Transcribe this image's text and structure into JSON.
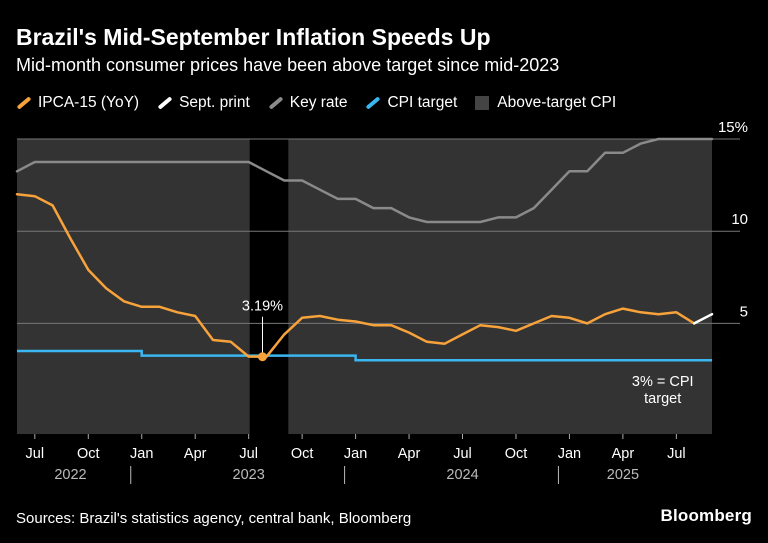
{
  "title": "Brazil's Mid-September Inflation Speeds Up",
  "subtitle": "Mid-month consumer prices have been above target since mid-2023",
  "legend": [
    {
      "label": "IPCA-15 (YoY)",
      "color": "#f7a23b",
      "kind": "line"
    },
    {
      "label": "Sept. print",
      "color": "#ffffff",
      "kind": "line"
    },
    {
      "label": "Key rate",
      "color": "#8a8a8a",
      "kind": "line"
    },
    {
      "label": "CPI target",
      "color": "#3ab7f0",
      "kind": "line"
    },
    {
      "label": "Above-target CPI",
      "color": "#444444",
      "kind": "box"
    }
  ],
  "source": "Sources: Brazil's statistics agency, central bank, Bloomberg",
  "brand": "Bloomberg",
  "chart_data": {
    "type": "line",
    "ylim": [
      -1,
      15
    ],
    "yticks": [
      {
        "value": 15,
        "label": "15%"
      },
      {
        "value": 10,
        "label": "10"
      },
      {
        "value": 5,
        "label": "5"
      }
    ],
    "x_start": "2022-06",
    "x_end": "2025-09",
    "month_ticks": [
      "Jul",
      "Oct",
      "Jan",
      "Apr",
      "Jul",
      "Oct",
      "Jan",
      "Apr",
      "Jul",
      "Oct",
      "Jan",
      "Apr",
      "Jul"
    ],
    "month_tick_dates": [
      "2022-07",
      "2022-10",
      "2023-01",
      "2023-04",
      "2023-07",
      "2023-10",
      "2024-01",
      "2024-04",
      "2024-07",
      "2024-10",
      "2025-01",
      "2025-04",
      "2025-07"
    ],
    "year_labels": [
      "2022",
      "2023",
      "2024",
      "2025"
    ],
    "year_label_dates": [
      "2022-09",
      "2023-07",
      "2024-07",
      "2025-04"
    ],
    "year_separator_dates": [
      "2023-01",
      "2024-01",
      "2025-01"
    ],
    "below_target_period": [
      "2023-07",
      "2023-09"
    ],
    "ipca15": {
      "name": "IPCA-15 (YoY)",
      "dates": [
        "2022-06",
        "2022-07",
        "2022-08",
        "2022-09",
        "2022-10",
        "2022-11",
        "2022-12",
        "2023-01",
        "2023-02",
        "2023-03",
        "2023-04",
        "2023-05",
        "2023-06",
        "2023-07",
        "2023-08",
        "2023-09",
        "2023-10",
        "2023-11",
        "2023-12",
        "2024-01",
        "2024-02",
        "2024-03",
        "2024-04",
        "2024-05",
        "2024-06",
        "2024-07",
        "2024-08",
        "2024-09",
        "2024-10",
        "2024-11",
        "2024-12",
        "2025-01",
        "2025-02",
        "2025-03",
        "2025-04",
        "2025-05",
        "2025-06",
        "2025-07",
        "2025-08"
      ],
      "values": [
        12.0,
        11.9,
        11.4,
        9.6,
        7.9,
        6.9,
        6.2,
        5.9,
        5.9,
        5.6,
        5.4,
        4.1,
        4.0,
        3.2,
        3.19,
        4.4,
        5.3,
        5.4,
        5.2,
        5.1,
        4.9,
        4.9,
        4.5,
        4.0,
        3.9,
        4.4,
        4.9,
        4.8,
        4.6,
        5.0,
        5.4,
        5.3,
        5.0,
        5.5,
        5.8,
        5.6,
        5.5,
        5.6,
        5.0
      ]
    },
    "sept_print": {
      "name": "Sept. print",
      "dates": [
        "2025-08",
        "2025-09"
      ],
      "values": [
        5.0,
        5.5
      ]
    },
    "key_rate": {
      "name": "Key rate",
      "dates": [
        "2022-06",
        "2022-07",
        "2022-08",
        "2022-09",
        "2022-10",
        "2022-11",
        "2022-12",
        "2023-01",
        "2023-02",
        "2023-03",
        "2023-04",
        "2023-05",
        "2023-06",
        "2023-07",
        "2023-08",
        "2023-09",
        "2023-10",
        "2023-11",
        "2023-12",
        "2024-01",
        "2024-02",
        "2024-03",
        "2024-04",
        "2024-05",
        "2024-06",
        "2024-07",
        "2024-08",
        "2024-09",
        "2024-10",
        "2024-11",
        "2024-12",
        "2025-01",
        "2025-02",
        "2025-03",
        "2025-04",
        "2025-05",
        "2025-06",
        "2025-07",
        "2025-08",
        "2025-09"
      ],
      "values": [
        13.25,
        13.75,
        13.75,
        13.75,
        13.75,
        13.75,
        13.75,
        13.75,
        13.75,
        13.75,
        13.75,
        13.75,
        13.75,
        13.75,
        13.25,
        12.75,
        12.75,
        12.25,
        11.75,
        11.75,
        11.25,
        11.25,
        10.75,
        10.5,
        10.5,
        10.5,
        10.5,
        10.75,
        10.75,
        11.25,
        12.25,
        13.25,
        13.25,
        14.25,
        14.25,
        14.75,
        15.0,
        15.0,
        15.0,
        15.0
      ]
    },
    "cpi_target": {
      "name": "CPI target",
      "dates": [
        "2022-06",
        "2022-12",
        "2023-01",
        "2023-12",
        "2024-01",
        "2025-09"
      ],
      "values": [
        3.5,
        3.5,
        3.25,
        3.25,
        3.0,
        3.0
      ]
    },
    "annotations": [
      {
        "label": "3.19%",
        "date": "2023-08",
        "value": 3.19
      },
      {
        "label": "3% = CPI",
        "label2": "target",
        "date": "2025-05",
        "value": 3.0
      }
    ]
  }
}
